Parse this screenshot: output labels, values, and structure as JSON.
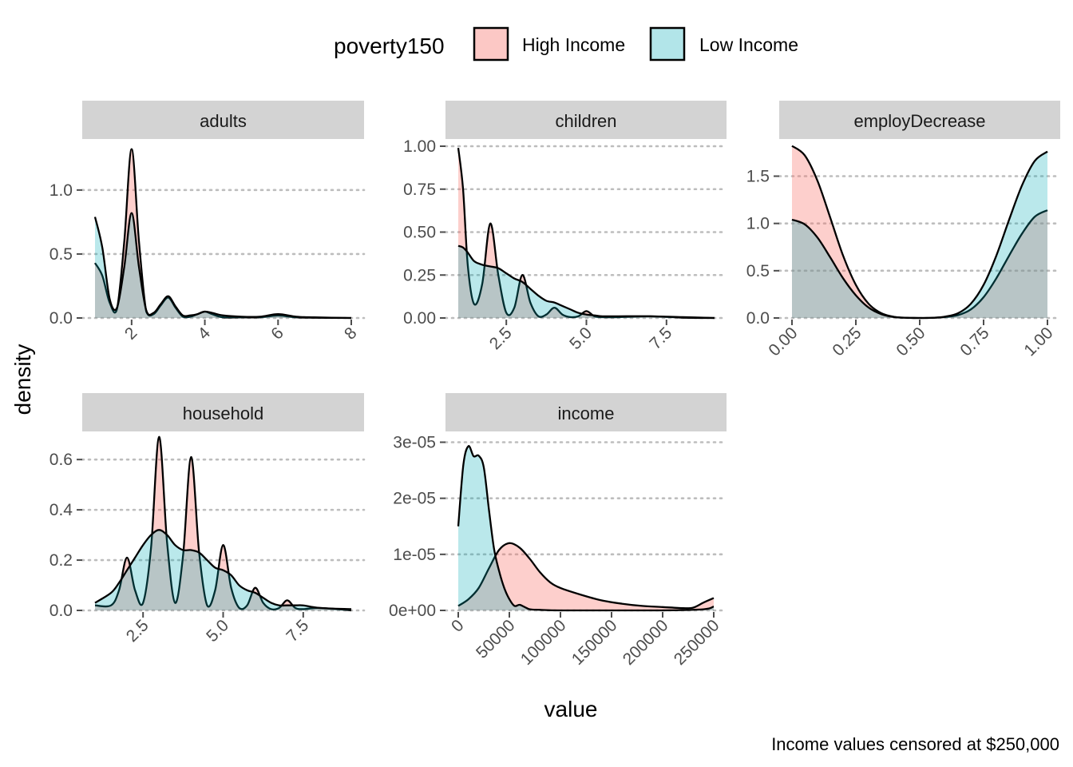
{
  "legend": {
    "title": "poverty150",
    "entries": [
      {
        "label": "High Income",
        "fill": "#F8766D"
      },
      {
        "label": "Low Income",
        "fill": "#00A9B5"
      }
    ]
  },
  "colors": {
    "high": "#F8766D",
    "low": "#00A9B5",
    "strip": "#D3D3D3",
    "line": "#000000"
  },
  "axis_titles": {
    "x": "value",
    "y": "density"
  },
  "caption": "Income values censored at $250,000",
  "chart_data": [
    {
      "type": "area",
      "panel": "adults",
      "xlim": [
        1,
        8
      ],
      "ylim": [
        0,
        1.33
      ],
      "x_ticks": [
        2,
        4,
        6,
        8
      ],
      "x_tick_labels": [
        "2",
        "4",
        "6",
        "8"
      ],
      "y_ticks": [
        0,
        0.5,
        1.0
      ],
      "y_tick_labels": [
        "0.0",
        "0.5",
        "1.0"
      ],
      "series": [
        {
          "name": "High Income",
          "x": [
            1,
            1.2,
            1.4,
            1.6,
            1.8,
            2,
            2.2,
            2.4,
            2.6,
            2.8,
            3,
            3.2,
            3.4,
            3.6,
            3.8,
            4,
            4.2,
            4.5,
            5,
            5.5,
            6,
            6.5,
            7,
            8
          ],
          "y": [
            0.43,
            0.33,
            0.12,
            0.07,
            0.6,
            1.32,
            0.6,
            0.05,
            0.03,
            0.1,
            0.16,
            0.08,
            0.01,
            0.01,
            0.03,
            0.05,
            0.03,
            0.005,
            0.005,
            0.005,
            0.02,
            0.005,
            0.002,
            0.0
          ]
        },
        {
          "name": "Low Income",
          "x": [
            1,
            1.2,
            1.4,
            1.6,
            1.8,
            2,
            2.2,
            2.4,
            2.6,
            2.8,
            3,
            3.2,
            3.4,
            3.6,
            3.8,
            4,
            4.2,
            4.5,
            5,
            5.5,
            6,
            6.5,
            7,
            8
          ],
          "y": [
            0.79,
            0.55,
            0.15,
            0.08,
            0.4,
            0.82,
            0.4,
            0.06,
            0.04,
            0.11,
            0.17,
            0.09,
            0.02,
            0.02,
            0.03,
            0.05,
            0.04,
            0.02,
            0.01,
            0.01,
            0.03,
            0.01,
            0.005,
            0.0
          ]
        }
      ]
    },
    {
      "type": "area",
      "panel": "children",
      "xlim": [
        1,
        9
      ],
      "ylim": [
        0,
        1.0
      ],
      "x_ticks": [
        2.5,
        5.0,
        7.5
      ],
      "x_tick_labels": [
        "2.5",
        "5.0",
        "7.5"
      ],
      "y_ticks": [
        0,
        0.25,
        0.5,
        0.75,
        1.0
      ],
      "y_tick_labels": [
        "0.00",
        "0.25",
        "0.50",
        "0.75",
        "1.00"
      ],
      "series": [
        {
          "name": "High Income",
          "x": [
            1,
            1.15,
            1.3,
            1.5,
            1.75,
            2,
            2.25,
            2.5,
            2.75,
            3,
            3.25,
            3.5,
            3.75,
            4,
            4.25,
            4.5,
            4.75,
            5,
            5.25,
            5.5,
            6,
            7,
            8,
            9
          ],
          "y": [
            0.99,
            0.75,
            0.3,
            0.08,
            0.2,
            0.55,
            0.25,
            0.03,
            0.06,
            0.25,
            0.09,
            0.01,
            0.02,
            0.06,
            0.02,
            0.005,
            0.01,
            0.04,
            0.01,
            0.005,
            0.005,
            0.01,
            0.002,
            0.0
          ]
        },
        {
          "name": "Low Income",
          "x": [
            1,
            1.15,
            1.3,
            1.5,
            1.75,
            2,
            2.25,
            2.5,
            2.75,
            3,
            3.25,
            3.5,
            3.75,
            4,
            4.25,
            4.5,
            4.75,
            5,
            5.25,
            5.5,
            6,
            7,
            8,
            9
          ],
          "y": [
            0.42,
            0.41,
            0.38,
            0.33,
            0.31,
            0.3,
            0.29,
            0.26,
            0.23,
            0.21,
            0.17,
            0.13,
            0.1,
            0.09,
            0.07,
            0.05,
            0.03,
            0.02,
            0.015,
            0.01,
            0.01,
            0.01,
            0.005,
            0.0
          ]
        }
      ]
    },
    {
      "type": "area",
      "panel": "employDecrease",
      "xlim": [
        0,
        1
      ],
      "ylim": [
        0,
        1.8
      ],
      "x_ticks": [
        0,
        0.25,
        0.5,
        0.75,
        1.0
      ],
      "x_tick_labels": [
        "0.00",
        "0.25",
        "0.50",
        "0.75",
        "1.00"
      ],
      "y_ticks": [
        0,
        0.5,
        1.0,
        1.5
      ],
      "y_tick_labels": [
        "0.0",
        "0.5",
        "1.0",
        "1.5"
      ],
      "series": [
        {
          "name": "High Income",
          "x": [
            0,
            0.05,
            0.1,
            0.15,
            0.2,
            0.25,
            0.3,
            0.35,
            0.4,
            0.45,
            0.5,
            0.55,
            0.6,
            0.65,
            0.7,
            0.75,
            0.8,
            0.85,
            0.9,
            0.95,
            1.0
          ],
          "y": [
            1.82,
            1.72,
            1.45,
            1.06,
            0.66,
            0.35,
            0.15,
            0.05,
            0.012,
            0.002,
            0.0,
            0.002,
            0.01,
            0.03,
            0.09,
            0.22,
            0.42,
            0.66,
            0.89,
            1.07,
            1.14
          ]
        },
        {
          "name": "Low Income",
          "x": [
            0,
            0.05,
            0.1,
            0.15,
            0.2,
            0.25,
            0.3,
            0.35,
            0.4,
            0.45,
            0.5,
            0.55,
            0.6,
            0.65,
            0.7,
            0.75,
            0.8,
            0.85,
            0.9,
            0.95,
            1.0
          ],
          "y": [
            1.04,
            0.99,
            0.85,
            0.64,
            0.42,
            0.24,
            0.11,
            0.04,
            0.01,
            0.002,
            0.0,
            0.002,
            0.015,
            0.05,
            0.15,
            0.35,
            0.66,
            1.04,
            1.4,
            1.66,
            1.76
          ]
        }
      ]
    },
    {
      "type": "area",
      "panel": "household",
      "xlim": [
        1,
        9
      ],
      "ylim": [
        0,
        0.68
      ],
      "x_ticks": [
        2.5,
        5.0,
        7.5
      ],
      "x_tick_labels": [
        "2.5",
        "5.0",
        "7.5"
      ],
      "y_ticks": [
        0,
        0.2,
        0.4,
        0.6
      ],
      "y_tick_labels": [
        "0.0",
        "0.2",
        "0.4",
        "0.6"
      ],
      "series": [
        {
          "name": "High Income",
          "x": [
            1,
            1.5,
            1.75,
            2,
            2.25,
            2.5,
            2.75,
            3,
            3.25,
            3.5,
            3.75,
            4,
            4.25,
            4.5,
            4.75,
            5,
            5.25,
            5.5,
            5.75,
            6,
            6.25,
            6.5,
            6.75,
            7,
            7.25,
            7.5,
            8,
            9
          ],
          "y": [
            0.02,
            0.02,
            0.08,
            0.21,
            0.08,
            0.03,
            0.25,
            0.69,
            0.27,
            0.03,
            0.22,
            0.61,
            0.23,
            0.02,
            0.08,
            0.26,
            0.09,
            0.01,
            0.02,
            0.09,
            0.03,
            0.005,
            0.01,
            0.04,
            0.01,
            0.005,
            0.01,
            0.0
          ]
        },
        {
          "name": "Low Income",
          "x": [
            1,
            1.5,
            1.75,
            2,
            2.25,
            2.5,
            2.75,
            3,
            3.25,
            3.5,
            3.75,
            4,
            4.25,
            4.5,
            4.75,
            5,
            5.25,
            5.5,
            5.75,
            6,
            6.25,
            6.5,
            6.75,
            7,
            7.25,
            7.5,
            8,
            9
          ],
          "y": [
            0.03,
            0.07,
            0.11,
            0.16,
            0.21,
            0.26,
            0.3,
            0.32,
            0.3,
            0.26,
            0.24,
            0.24,
            0.23,
            0.2,
            0.17,
            0.16,
            0.14,
            0.1,
            0.08,
            0.07,
            0.05,
            0.03,
            0.02,
            0.02,
            0.02,
            0.02,
            0.01,
            0.005
          ]
        }
      ]
    },
    {
      "type": "area",
      "panel": "income",
      "xlim": [
        0,
        250000
      ],
      "ylim": [
        0,
        3.05e-05
      ],
      "x_ticks": [
        0,
        50000,
        100000,
        150000,
        200000,
        250000
      ],
      "x_tick_labels": [
        "0",
        "50000",
        "100000",
        "150000",
        "200000",
        "250000"
      ],
      "y_ticks": [
        0,
        1e-05,
        2e-05,
        3e-05
      ],
      "y_tick_labels": [
        "0e+00",
        "1e-05",
        "2e-05",
        "3e-05"
      ],
      "series": [
        {
          "name": "High Income",
          "x": [
            0,
            10000,
            20000,
            30000,
            40000,
            50000,
            60000,
            70000,
            80000,
            90000,
            100000,
            120000,
            140000,
            160000,
            180000,
            200000,
            220000,
            230000,
            240000,
            250000
          ],
          "y": [
            8e-07,
            2e-06,
            4e-06,
            7.5e-06,
            1.08e-05,
            1.2e-05,
            1.12e-05,
            9.2e-06,
            6.8e-06,
            5e-06,
            4e-06,
            2.8e-06,
            1.8e-06,
            1.2e-06,
            8e-07,
            6e-07,
            4e-07,
            5e-07,
            1.4e-06,
            2.2e-06
          ]
        },
        {
          "name": "Low Income",
          "x": [
            0,
            5000,
            10000,
            15000,
            20000,
            25000,
            30000,
            35000,
            40000,
            45000,
            50000,
            55000,
            60000,
            65000,
            70000,
            80000,
            100000,
            150000,
            200000,
            240000,
            250000
          ],
          "y": [
            1.5e-05,
            2.6e-05,
            2.93e-05,
            2.75e-05,
            2.76e-05,
            2.55e-05,
            1.8e-05,
            1.1e-05,
            7e-06,
            4e-06,
            2e-06,
            8e-07,
            1e-06,
            6e-07,
            2e-07,
            1e-07,
            0.0,
            0.0,
            0.0,
            2e-07,
            7e-07
          ]
        }
      ]
    }
  ]
}
